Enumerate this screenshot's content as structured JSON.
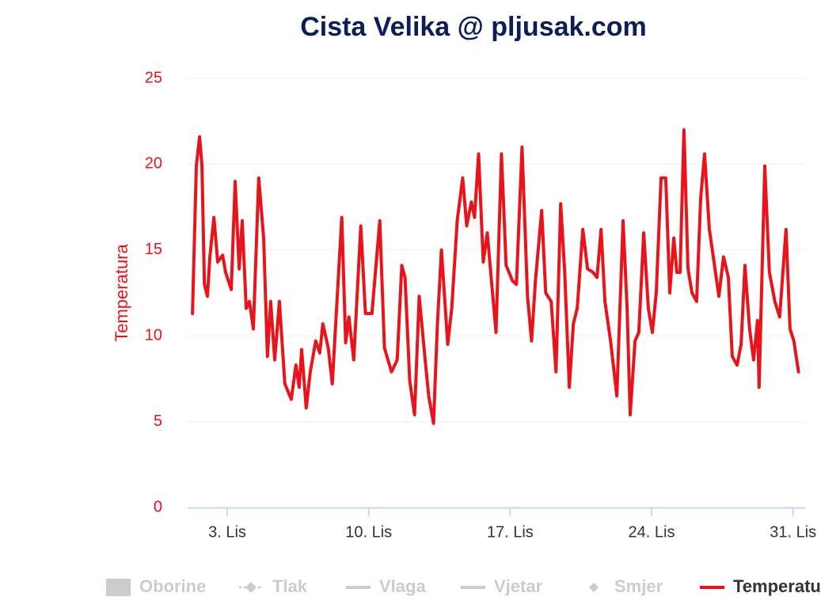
{
  "chart_data": {
    "type": "line",
    "title": "Cista Velika @ pljusak.com",
    "y_label": "Temperatura",
    "xlim": [
      1.04,
      31.6
    ],
    "xticks": [
      {
        "value": 3,
        "label": "3. Lis"
      },
      {
        "value": 10,
        "label": "10. Lis"
      },
      {
        "value": 17,
        "label": "17. Lis"
      },
      {
        "value": 24,
        "label": "24. Lis"
      },
      {
        "value": 31,
        "label": "31. Lis"
      }
    ],
    "ylim": [
      0,
      25
    ],
    "yticks": [
      0,
      5,
      10,
      15,
      20,
      25
    ],
    "grid": true,
    "x": [
      1.28,
      1.47,
      1.63,
      1.75,
      1.87,
      2.02,
      2.14,
      2.34,
      2.53,
      2.77,
      2.92,
      3.2,
      3.39,
      3.59,
      3.74,
      3.94,
      4.1,
      4.29,
      4.56,
      4.8,
      4.99,
      5.15,
      5.35,
      5.58,
      5.85,
      6.17,
      6.4,
      6.56,
      6.68,
      6.91,
      7.11,
      7.38,
      7.58,
      7.73,
      8.0,
      8.2,
      8.67,
      8.86,
      9.02,
      9.26,
      9.61,
      9.84,
      10.16,
      10.55,
      10.78,
      11.13,
      11.41,
      11.64,
      11.8,
      12.03,
      12.27,
      12.5,
      12.78,
      12.97,
      13.21,
      13.4,
      13.6,
      13.91,
      14.11,
      14.38,
      14.65,
      14.85,
      15.08,
      15.24,
      15.44,
      15.67,
      15.87,
      16.06,
      16.3,
      16.57,
      16.8,
      17.12,
      17.31,
      17.59,
      17.86,
      18.06,
      18.25,
      18.56,
      18.76,
      19.03,
      19.27,
      19.5,
      19.7,
      19.93,
      20.13,
      20.32,
      20.6,
      20.83,
      21.1,
      21.3,
      21.5,
      21.69,
      21.97,
      22.28,
      22.59,
      22.79,
      22.94,
      23.18,
      23.37,
      23.61,
      23.84,
      24.04,
      24.23,
      24.47,
      24.7,
      24.9,
      25.1,
      25.25,
      25.41,
      25.6,
      25.8,
      26.0,
      26.23,
      26.43,
      26.62,
      26.86,
      27.09,
      27.33,
      27.56,
      27.8,
      27.99,
      28.23,
      28.43,
      28.62,
      28.85,
      29.05,
      29.24,
      29.32,
      29.6,
      29.83,
      30.1,
      30.34,
      30.65,
      30.85,
      31.04,
      31.27
    ],
    "series": [
      {
        "name": "Oborine",
        "visible": false,
        "symbol": "rect"
      },
      {
        "name": "Tlak",
        "visible": false,
        "symbol": "dash-diamond"
      },
      {
        "name": "Vlaga",
        "visible": false,
        "symbol": "line"
      },
      {
        "name": "Vjetar",
        "visible": false,
        "symbol": "line"
      },
      {
        "name": "Smjer",
        "visible": false,
        "symbol": "diamond"
      },
      {
        "name": "Temperatura",
        "visible": true,
        "symbol": "line",
        "color": "#e8141b",
        "values": [
          11.3,
          19.9,
          21.6,
          19.9,
          13.0,
          12.3,
          14.6,
          16.9,
          14.3,
          14.7,
          13.7,
          12.7,
          19.0,
          13.9,
          16.7,
          11.6,
          12.0,
          10.4,
          19.2,
          15.7,
          8.8,
          12.0,
          8.6,
          12.0,
          7.2,
          6.3,
          8.3,
          7.0,
          9.2,
          5.8,
          7.9,
          9.7,
          9.0,
          10.7,
          9.3,
          7.2,
          16.9,
          9.6,
          11.1,
          8.6,
          16.4,
          11.3,
          11.3,
          16.7,
          9.3,
          7.9,
          8.6,
          14.1,
          13.4,
          7.4,
          5.4,
          12.3,
          8.8,
          6.5,
          4.9,
          10.7,
          15.0,
          9.5,
          11.6,
          16.7,
          19.2,
          16.4,
          17.8,
          16.9,
          20.6,
          14.3,
          16.0,
          13.4,
          10.2,
          20.6,
          14.1,
          13.2,
          13.0,
          21.0,
          12.3,
          9.7,
          13.2,
          17.3,
          12.5,
          12.0,
          7.9,
          17.7,
          13.7,
          7.0,
          10.7,
          11.6,
          16.2,
          13.9,
          13.7,
          13.4,
          16.2,
          12.0,
          9.7,
          6.5,
          16.7,
          11.6,
          5.4,
          9.7,
          10.2,
          16.0,
          11.6,
          10.2,
          12.5,
          19.2,
          19.2,
          12.5,
          15.7,
          13.7,
          13.7,
          22.0,
          13.9,
          12.5,
          12.0,
          18.0,
          20.6,
          16.2,
          14.3,
          12.3,
          14.6,
          13.4,
          8.8,
          8.3,
          9.5,
          14.1,
          10.4,
          8.6,
          10.9,
          7.0,
          19.9,
          13.7,
          12.0,
          11.1,
          16.2,
          10.4,
          9.7,
          7.9
        ]
      }
    ]
  }
}
